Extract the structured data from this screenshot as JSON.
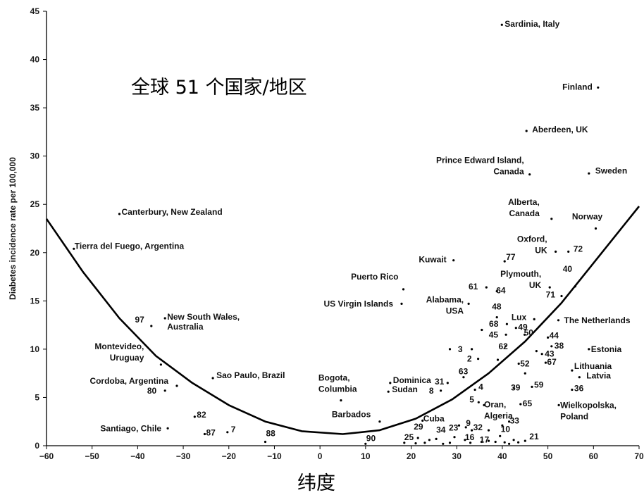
{
  "chart_data": {
    "type": "scatter",
    "title": "全球 51 个国家/地区",
    "xlabel": "纬度",
    "ylabel": "Diabetes incidence rate per 100,000",
    "xlim": [
      -60,
      70
    ],
    "ylim": [
      0,
      45
    ],
    "x_ticks": [
      -60,
      -50,
      -40,
      -30,
      -20,
      -10,
      0,
      10,
      20,
      30,
      40,
      50,
      60,
      70
    ],
    "y_ticks": [
      0,
      5,
      10,
      15,
      20,
      25,
      30,
      35,
      40,
      45
    ],
    "grid": false,
    "points": [
      {
        "x": 39.9,
        "y": 43.6,
        "label": "Sardinia, Italy"
      },
      {
        "x": 61.0,
        "y": 37.1,
        "label": "Finland"
      },
      {
        "x": 45.3,
        "y": 32.6,
        "label": "Aberdeen, UK"
      },
      {
        "x": 46.0,
        "y": 28.1,
        "label": "Prince Edward Island, Canada"
      },
      {
        "x": 59.0,
        "y": 28.2,
        "label": "Sweden"
      },
      {
        "x": -44.0,
        "y": 24.0,
        "label": "Canterbury, New Zealand"
      },
      {
        "x": 50.8,
        "y": 23.5,
        "label": "Alberta, Canada"
      },
      {
        "x": 60.5,
        "y": 22.5,
        "label": "Norway"
      },
      {
        "x": -54.0,
        "y": 20.4,
        "label": "Tierra del Fuego, Argentina"
      },
      {
        "x": 51.7,
        "y": 20.1,
        "label": "Oxford, UK"
      },
      {
        "x": 54.5,
        "y": 20.1,
        "label": "72"
      },
      {
        "x": 29.3,
        "y": 19.2,
        "label": "Kuwait"
      },
      {
        "x": 40.5,
        "y": 19.1,
        "label": "77"
      },
      {
        "x": 18.3,
        "y": 16.2,
        "label": "Puerto Rico"
      },
      {
        "x": 36.5,
        "y": 16.4,
        "label": "61"
      },
      {
        "x": 38.8,
        "y": 16.0,
        "label": "64"
      },
      {
        "x": 50.4,
        "y": 16.4,
        "label": "Plymouth, UK"
      },
      {
        "x": 56.0,
        "y": 16.5,
        "label": "40"
      },
      {
        "x": 53.0,
        "y": 15.5,
        "label": "71"
      },
      {
        "x": 17.9,
        "y": 14.7,
        "label": "US Virgin Islands"
      },
      {
        "x": 32.6,
        "y": 14.7,
        "label": "Alabama, USA"
      },
      {
        "x": 38.8,
        "y": 13.3,
        "label": "48"
      },
      {
        "x": -37.0,
        "y": 12.4,
        "label": "97"
      },
      {
        "x": -34.0,
        "y": 13.2,
        "label": "New South Wales, Australia"
      },
      {
        "x": 47.0,
        "y": 13.1,
        "label": "Lux"
      },
      {
        "x": 52.3,
        "y": 13.0,
        "label": "The Netherlands"
      },
      {
        "x": 41.0,
        "y": 12.6,
        "label": "68"
      },
      {
        "x": 43.0,
        "y": 12.2,
        "label": "49"
      },
      {
        "x": 40.8,
        "y": 11.5,
        "label": "45"
      },
      {
        "x": 44.9,
        "y": 11.5,
        "label": "50"
      },
      {
        "x": 50.0,
        "y": 11.2,
        "label": "44"
      },
      {
        "x": 33.3,
        "y": 10.0,
        "label": "3"
      },
      {
        "x": 40.7,
        "y": 10.3,
        "label": "62"
      },
      {
        "x": 50.8,
        "y": 10.3,
        "label": "38"
      },
      {
        "x": 59.0,
        "y": 10.0,
        "label": "Estonia"
      },
      {
        "x": -34.9,
        "y": 8.4,
        "label": "Montevideo, Uruguay"
      },
      {
        "x": 34.7,
        "y": 9.0,
        "label": "2"
      },
      {
        "x": 48.7,
        "y": 9.5,
        "label": "43"
      },
      {
        "x": 43.6,
        "y": 8.5,
        "label": "52"
      },
      {
        "x": 49.5,
        "y": 8.6,
        "label": "67"
      },
      {
        "x": 55.3,
        "y": 7.8,
        "label": "Lithuania"
      },
      {
        "x": 56.9,
        "y": 7.1,
        "label": "Latvia"
      },
      {
        "x": -23.5,
        "y": 7.0,
        "label": "Sao Paulo, Brazil"
      },
      {
        "x": 15.4,
        "y": 6.5,
        "label": "Dominica"
      },
      {
        "x": 31.5,
        "y": 7.1,
        "label": "63"
      },
      {
        "x": -31.4,
        "y": 6.2,
        "label": "Cordoba, Argentina"
      },
      {
        "x": -34.0,
        "y": 5.7,
        "label": "80"
      },
      {
        "x": 28.0,
        "y": 6.5,
        "label": "31"
      },
      {
        "x": 15.0,
        "y": 5.6,
        "label": "Sudan"
      },
      {
        "x": 26.5,
        "y": 5.7,
        "label": "8"
      },
      {
        "x": 34.0,
        "y": 5.8,
        "label": "4"
      },
      {
        "x": 42.5,
        "y": 6.0,
        "label": "39"
      },
      {
        "x": 46.5,
        "y": 6.1,
        "label": "59"
      },
      {
        "x": 55.3,
        "y": 5.8,
        "label": "36"
      },
      {
        "x": 4.6,
        "y": 4.7,
        "label": "Bogota, Columbia"
      },
      {
        "x": 34.8,
        "y": 4.5,
        "label": "5"
      },
      {
        "x": 36.0,
        "y": 4.2,
        "label": "Oran, Algeria"
      },
      {
        "x": 44.0,
        "y": 4.3,
        "label": "65"
      },
      {
        "x": 52.4,
        "y": 4.2,
        "label": "Wielkopolska, Poland"
      },
      {
        "x": -27.5,
        "y": 3.0,
        "label": "82"
      },
      {
        "x": 13.1,
        "y": 2.5,
        "label": "Barbados"
      },
      {
        "x": 22.5,
        "y": 2.6,
        "label": "Cuba"
      },
      {
        "x": 41.5,
        "y": 2.5,
        "label": "33"
      },
      {
        "x": -33.4,
        "y": 1.8,
        "label": "Santiago, Chile"
      },
      {
        "x": 32.0,
        "y": 1.9,
        "label": "9"
      },
      {
        "x": 33.3,
        "y": 1.6,
        "label": "32"
      },
      {
        "x": -25.3,
        "y": 1.2,
        "label": "87"
      },
      {
        "x": -20.3,
        "y": 1.4,
        "label": "7"
      },
      {
        "x": 21.5,
        "y": 0.8,
        "label": "29"
      },
      {
        "x": 25.5,
        "y": 0.7,
        "label": "34"
      },
      {
        "x": 29.5,
        "y": 0.9,
        "label": "23"
      },
      {
        "x": 39.5,
        "y": 1.0,
        "label": "10"
      },
      {
        "x": 31.8,
        "y": 0.6,
        "label": "16"
      },
      {
        "x": 35.5,
        "y": 0.4,
        "label": "17"
      },
      {
        "x": 45.0,
        "y": 0.5,
        "label": "21"
      },
      {
        "x": -12.0,
        "y": 0.4,
        "label": "88"
      },
      {
        "x": 10.0,
        "y": 0.2,
        "label": "90"
      },
      {
        "x": 18.5,
        "y": 0.3,
        "label": "25"
      },
      {
        "x": 21.0,
        "y": 0.25,
        "label": ""
      },
      {
        "x": 23.0,
        "y": 0.3,
        "label": ""
      },
      {
        "x": 24.0,
        "y": 0.6,
        "label": ""
      },
      {
        "x": 27.0,
        "y": 0.2,
        "label": ""
      },
      {
        "x": 28.5,
        "y": 0.3,
        "label": ""
      },
      {
        "x": 33.0,
        "y": 0.3,
        "label": ""
      },
      {
        "x": 37.0,
        "y": 0.5,
        "label": ""
      },
      {
        "x": 38.5,
        "y": 0.4,
        "label": ""
      },
      {
        "x": 40.5,
        "y": 0.35,
        "label": ""
      },
      {
        "x": 41.5,
        "y": 0.2,
        "label": ""
      },
      {
        "x": 42.5,
        "y": 0.6,
        "label": ""
      },
      {
        "x": 43.5,
        "y": 0.35,
        "label": ""
      },
      {
        "x": 30.5,
        "y": 2.1,
        "label": ""
      },
      {
        "x": 37.0,
        "y": 1.6,
        "label": ""
      },
      {
        "x": 40.0,
        "y": 2.1,
        "label": ""
      },
      {
        "x": 45.0,
        "y": 7.5,
        "label": ""
      },
      {
        "x": 47.5,
        "y": 9.8,
        "label": ""
      },
      {
        "x": 39.0,
        "y": 8.9,
        "label": ""
      },
      {
        "x": 28.5,
        "y": 10.0,
        "label": ""
      },
      {
        "x": 35.5,
        "y": 12.0,
        "label": ""
      }
    ],
    "trend_curve": {
      "x": [
        -60,
        -52,
        -44,
        -36,
        -28,
        -20,
        -12,
        -4,
        5,
        13,
        21,
        29,
        37,
        45,
        53,
        61,
        70
      ],
      "y": [
        23.5,
        18.0,
        13.2,
        9.3,
        6.5,
        4.2,
        2.5,
        1.5,
        1.2,
        1.6,
        2.8,
        4.8,
        7.5,
        10.8,
        14.8,
        19.5,
        24.8
      ]
    }
  }
}
